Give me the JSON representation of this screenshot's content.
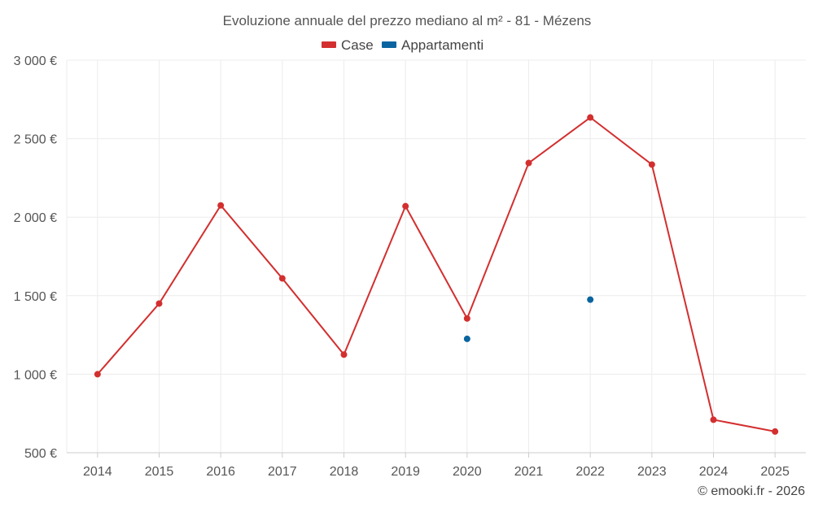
{
  "chart_data": {
    "type": "line",
    "title": "Evoluzione annuale del prezzo mediano al m² - 81 - Mézens",
    "categories": [
      "2014",
      "2015",
      "2016",
      "2017",
      "2018",
      "2019",
      "2020",
      "2021",
      "2022",
      "2023",
      "2024",
      "2025"
    ],
    "ylim": [
      500,
      3000
    ],
    "yticks": [
      500,
      1000,
      1500,
      2000,
      2500,
      3000
    ],
    "ytick_labels": [
      "500 €",
      "1 000 €",
      "1 500 €",
      "2 000 €",
      "2 500 €",
      "3 000 €"
    ],
    "grid": true,
    "legend_position": "top-center",
    "series": [
      {
        "name": "Case",
        "color": "#d32f2f",
        "values": [
          1000,
          1450,
          2075,
          1610,
          1125,
          2070,
          1355,
          2345,
          2635,
          2335,
          710,
          635
        ]
      },
      {
        "name": "Appartamenti",
        "color": "#0a64a0",
        "values": [
          null,
          null,
          null,
          null,
          null,
          null,
          1225,
          null,
          1475,
          null,
          null,
          null
        ]
      }
    ]
  },
  "credit": "© emooki.fr - 2026"
}
